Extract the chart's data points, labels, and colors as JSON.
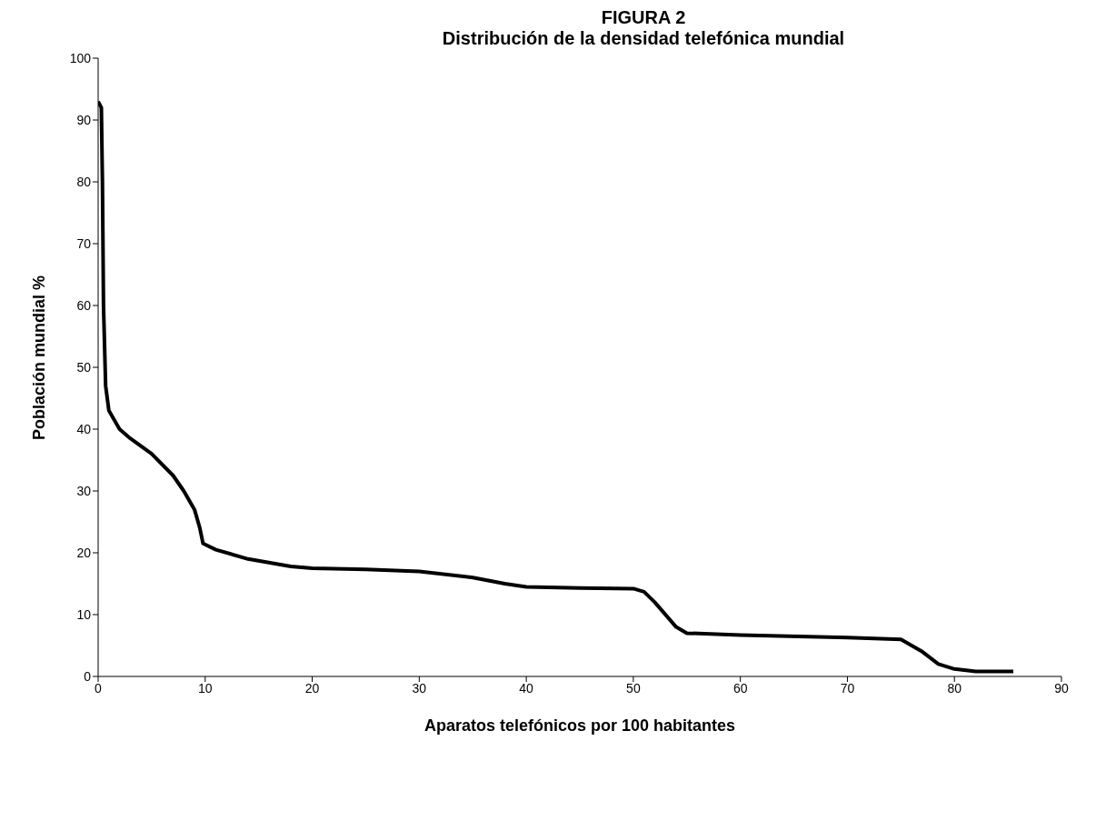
{
  "chart_data": {
    "type": "line",
    "title": "FIGURA 2",
    "subtitle": "Distribución de la densidad telefónica mundial",
    "xlabel": "Aparatos telefónicos por 100 habitantes",
    "ylabel": "Población mundial %",
    "x": [
      0,
      0.3,
      0.4,
      0.5,
      0.7,
      1,
      2,
      3,
      5,
      7,
      8,
      9,
      9.5,
      9.8,
      11,
      14,
      18,
      20,
      25,
      30,
      35,
      38,
      40,
      45,
      50,
      51,
      52,
      54,
      55,
      60,
      70,
      75,
      77,
      78.5,
      80,
      82,
      85.5
    ],
    "series": [
      {
        "color": "#000000",
        "values": [
          93,
          92,
          80,
          60,
          47,
          43,
          40,
          38.5,
          36,
          32.5,
          30,
          27,
          24,
          21.5,
          20.5,
          19,
          17.8,
          17.5,
          17.3,
          17,
          16,
          15,
          14.5,
          14.3,
          14.2,
          13.7,
          12,
          8,
          7,
          6.7,
          6.3,
          6,
          4,
          2,
          1.2,
          0.8,
          0.8
        ]
      }
    ],
    "xlim": [
      0,
      90
    ],
    "xticks": [
      0,
      10,
      20,
      30,
      40,
      50,
      60,
      70,
      80,
      90
    ],
    "ylim": [
      0,
      100
    ],
    "yticks": [
      0,
      10,
      20,
      30,
      40,
      50,
      60,
      70,
      80,
      90,
      100
    ],
    "grid": false,
    "legend": false,
    "marker": "none",
    "line_style": "solid"
  }
}
